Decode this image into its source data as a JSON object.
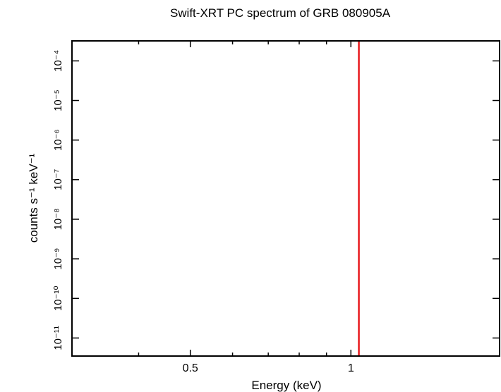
{
  "chart_data": {
    "type": "line",
    "title": "Swift-XRT PC spectrum of GRB 080905A",
    "xlabel": "Energy (keV)",
    "ylabel": "counts s⁻¹ keV⁻¹",
    "x_scale": "log",
    "y_scale": "log",
    "xlim": [
      0.3,
      1.9
    ],
    "ylim": [
      3.5e-12,
      0.00032
    ],
    "x_ticks": [
      {
        "value": 0.5,
        "label": "0.5"
      },
      {
        "value": 1,
        "label": "1"
      }
    ],
    "y_ticks": [
      {
        "exp": -4,
        "label": "10⁻⁴"
      },
      {
        "exp": -5,
        "label": "10⁻⁵"
      },
      {
        "exp": -6,
        "label": "10⁻⁶"
      },
      {
        "exp": -7,
        "label": "10⁻⁷"
      },
      {
        "exp": -8,
        "label": "10⁻⁸"
      },
      {
        "exp": -9,
        "label": "10⁻⁹"
      },
      {
        "exp": -10,
        "label": "10⁻¹⁰"
      },
      {
        "exp": -11,
        "label": "10⁻¹¹"
      }
    ],
    "series": [
      {
        "color": "#e8191c",
        "points": [
          {
            "x": 1.035,
            "y": 0.00032
          },
          {
            "x": 1.035,
            "y": 3.5e-12
          }
        ]
      }
    ],
    "grid": false,
    "legend": "none"
  }
}
